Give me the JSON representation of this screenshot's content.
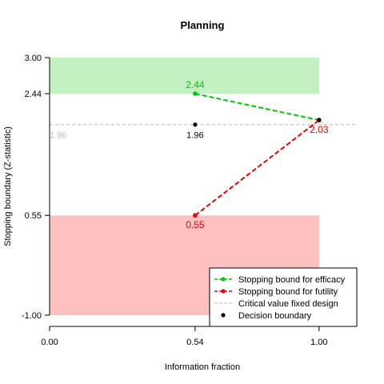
{
  "chart_data": {
    "type": "line",
    "title": "Planning",
    "xlabel": "Information fraction",
    "ylabel": "Stopping boundary (Z-statistic)",
    "xlim": [
      0,
      1.14
    ],
    "ylim": [
      -1.05,
      3.05
    ],
    "x_ticks": [
      {
        "value": 0.0,
        "label": "0.00"
      },
      {
        "value": 0.54,
        "label": "0.54"
      },
      {
        "value": 1.0,
        "label": "1.00"
      }
    ],
    "y_ticks": [
      {
        "value": -1.0,
        "label": "-1.00"
      },
      {
        "value": 0.55,
        "label": "0.55"
      },
      {
        "value": 2.44,
        "label": "2.44"
      },
      {
        "value": 3.0,
        "label": "3.00"
      }
    ],
    "critical_value": {
      "value": 1.96,
      "label": "1.96"
    },
    "regions": [
      {
        "name": "efficacy",
        "color": "#c1f0c1",
        "ymin": 2.44,
        "ymax": 3.0,
        "xmax": 1.0
      },
      {
        "name": "futility",
        "color": "#ffc0c0",
        "ymin": -1.0,
        "ymax": 0.55,
        "xmax": 1.0
      }
    ],
    "series": [
      {
        "name": "Stopping bound for efficacy",
        "color": "#00cc00",
        "x": [
          0.54,
          1.0
        ],
        "y": [
          2.44,
          2.03
        ],
        "labels": [
          "2.44",
          null
        ]
      },
      {
        "name": "Stopping bound for futility",
        "color": "#ee0000",
        "x": [
          0.54,
          1.0
        ],
        "y": [
          0.55,
          2.03
        ],
        "labels": [
          "0.55",
          "2.03"
        ]
      }
    ],
    "decision_points": [
      {
        "x": 0.54,
        "y": 1.96,
        "label": "1.96"
      },
      {
        "x": 1.0,
        "y": 2.03,
        "label": null
      }
    ],
    "legend": {
      "position": "bottom-right",
      "entries": [
        {
          "label": "Stopping bound for efficacy",
          "color": "#00cc00",
          "kind": "line-point"
        },
        {
          "label": "Stopping bound for futility",
          "color": "#ee0000",
          "kind": "line-point"
        },
        {
          "label": "Critical value fixed design",
          "color": "#bbbbbb",
          "kind": "dashed"
        },
        {
          "label": "Decision boundary",
          "color": "#000000",
          "kind": "point"
        }
      ]
    }
  }
}
